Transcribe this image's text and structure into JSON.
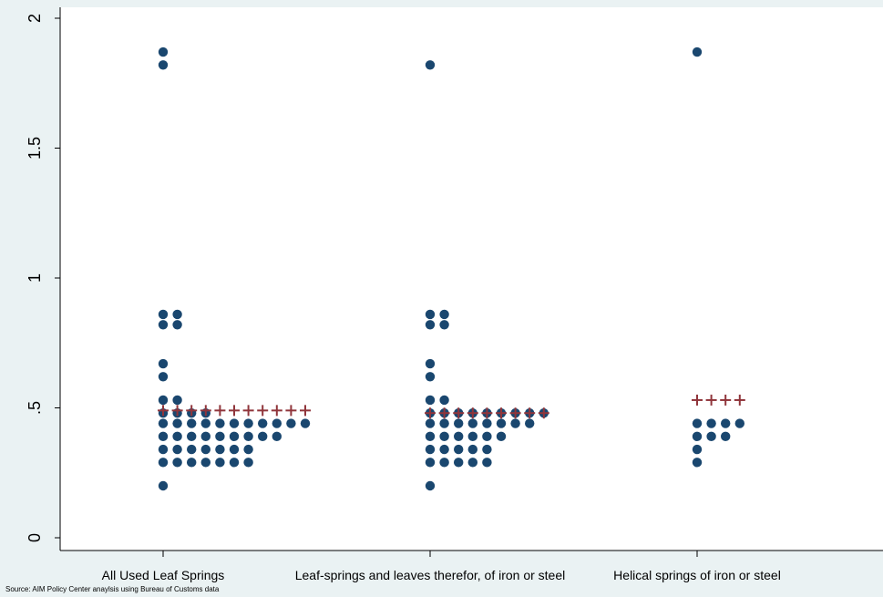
{
  "chart_data": {
    "type": "scatter",
    "subtype": "dot-plot",
    "title": "",
    "xlabel": "",
    "ylabel": "",
    "ylim": [
      0,
      2
    ],
    "y_ticks": [
      {
        "value": 0,
        "label": "0"
      },
      {
        "value": 0.5,
        "label": ".5"
      },
      {
        "value": 1,
        "label": "1"
      },
      {
        "value": 1.5,
        "label": "1.5"
      },
      {
        "value": 2,
        "label": "2"
      }
    ],
    "categories": [
      "All Used Leaf Springs",
      "Leaf-springs and leaves therefor, of iron or steel",
      "Helical springs of iron or steel"
    ],
    "grid": false,
    "legend": "none",
    "colors": {
      "background": "#eaf2f3",
      "plot_background": "#ffffff",
      "points": "#1a476f",
      "means": "#90353b",
      "axis": "#000000"
    },
    "series": [
      {
        "marker": "dot",
        "groups": [
          {
            "category": "All Used Leaf Springs",
            "levels": [
              {
                "y": 1.87,
                "count": 1
              },
              {
                "y": 1.82,
                "count": 1
              },
              {
                "y": 0.86,
                "count": 2
              },
              {
                "y": 0.82,
                "count": 2
              },
              {
                "y": 0.67,
                "count": 1
              },
              {
                "y": 0.62,
                "count": 1
              },
              {
                "y": 0.53,
                "count": 2
              },
              {
                "y": 0.48,
                "count": 4
              },
              {
                "y": 0.44,
                "count": 11
              },
              {
                "y": 0.39,
                "count": 9
              },
              {
                "y": 0.34,
                "count": 7
              },
              {
                "y": 0.29,
                "count": 7
              },
              {
                "y": 0.2,
                "count": 1
              }
            ]
          },
          {
            "category": "Leaf-springs and leaves therefor, of iron or steel",
            "levels": [
              {
                "y": 1.82,
                "count": 1
              },
              {
                "y": 0.86,
                "count": 2
              },
              {
                "y": 0.82,
                "count": 2
              },
              {
                "y": 0.67,
                "count": 1
              },
              {
                "y": 0.62,
                "count": 1
              },
              {
                "y": 0.53,
                "count": 2
              },
              {
                "y": 0.48,
                "count": 9
              },
              {
                "y": 0.44,
                "count": 8
              },
              {
                "y": 0.39,
                "count": 6
              },
              {
                "y": 0.34,
                "count": 5
              },
              {
                "y": 0.29,
                "count": 5
              },
              {
                "y": 0.2,
                "count": 1
              }
            ]
          },
          {
            "category": "Helical springs of iron or steel",
            "levels": [
              {
                "y": 1.87,
                "count": 1
              },
              {
                "y": 0.44,
                "count": 4
              },
              {
                "y": 0.39,
                "count": 3
              },
              {
                "y": 0.34,
                "count": 1
              },
              {
                "y": 0.29,
                "count": 1
              }
            ]
          }
        ]
      },
      {
        "marker": "plus",
        "groups": [
          {
            "category": "All Used Leaf Springs",
            "y": 0.49,
            "count": 11
          },
          {
            "category": "Leaf-springs and leaves therefor, of iron or steel",
            "y": 0.48,
            "count": 9
          },
          {
            "category": "Helical springs of iron or steel",
            "y": 0.53,
            "count": 4
          }
        ]
      }
    ]
  },
  "footer": {
    "source": "Source: AIM Policy Center anaylsis using Bureau of Customs data"
  }
}
